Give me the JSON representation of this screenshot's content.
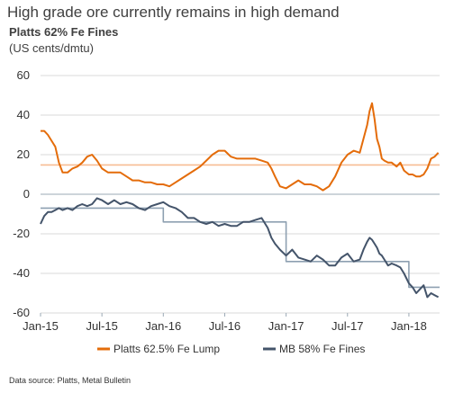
{
  "header": {
    "title": "High grade ore currently remains in high demand",
    "subtitle": "Platts 62% Fe Fines",
    "units": "(US cents/dmtu)"
  },
  "footer": {
    "source": "Data source: Platts, Metal Bulletin"
  },
  "colors": {
    "lump": "#E46C0A",
    "lump_avg": "#F7BC93",
    "fines": "#44546A",
    "fines_avg": "#8EA0B1",
    "zero_line": "#9BA9B5"
  },
  "chart_data": {
    "type": "line",
    "title": "Platts 62% Fe Fines",
    "ylabel": "(US cents/dmtu)",
    "xlabel": "",
    "ylim": [
      -60,
      60
    ],
    "yticks": [
      60,
      40,
      20,
      0,
      -20,
      -40,
      -60
    ],
    "xlim": [
      2015.0,
      2018.25
    ],
    "xticks": [
      {
        "label": "Jan-15",
        "x": 2015.0
      },
      {
        "label": "Jul-15",
        "x": 2015.5
      },
      {
        "label": "Jan-16",
        "x": 2016.0
      },
      {
        "label": "Jul-16",
        "x": 2016.5
      },
      {
        "label": "Jan-17",
        "x": 2017.0
      },
      {
        "label": "Jul-17",
        "x": 2017.5
      },
      {
        "label": "Jan-18",
        "x": 2018.0
      }
    ],
    "grid": "horizontal",
    "legend_position": "bottom",
    "series": [
      {
        "name": "Platts 62.5% Fe Lump",
        "color": "#E46C0A",
        "x": [
          2015.0,
          2015.03,
          2015.06,
          2015.09,
          2015.12,
          2015.15,
          2015.18,
          2015.22,
          2015.26,
          2015.3,
          2015.34,
          2015.38,
          2015.42,
          2015.46,
          2015.5,
          2015.55,
          2015.6,
          2015.65,
          2015.7,
          2015.75,
          2015.8,
          2015.85,
          2015.9,
          2015.95,
          2016.0,
          2016.05,
          2016.1,
          2016.15,
          2016.2,
          2016.25,
          2016.3,
          2016.35,
          2016.4,
          2016.45,
          2016.5,
          2016.55,
          2016.6,
          2016.65,
          2016.7,
          2016.75,
          2016.8,
          2016.85,
          2016.88,
          2016.91,
          2016.95,
          2017.0,
          2017.05,
          2017.1,
          2017.15,
          2017.2,
          2017.25,
          2017.3,
          2017.35,
          2017.4,
          2017.45,
          2017.5,
          2017.55,
          2017.6,
          2017.63,
          2017.66,
          2017.68,
          2017.7,
          2017.72,
          2017.74,
          2017.76,
          2017.78,
          2017.8,
          2017.83,
          2017.86,
          2017.9,
          2017.93,
          2017.96,
          2018.0,
          2018.03,
          2018.06,
          2018.09,
          2018.12,
          2018.15,
          2018.18,
          2018.21,
          2018.24
        ],
        "y": [
          32,
          32,
          30,
          27,
          24,
          16,
          11,
          11,
          13,
          14,
          16,
          19,
          20,
          17,
          13,
          11,
          11,
          11,
          9,
          7,
          7,
          6,
          6,
          5,
          5,
          4,
          6,
          8,
          10,
          12,
          14,
          17,
          20,
          22,
          22,
          19,
          18,
          18,
          18,
          18,
          17,
          16,
          13,
          9,
          4,
          3,
          5,
          7,
          5,
          5,
          4,
          2,
          4,
          9,
          16,
          20,
          22,
          21,
          28,
          35,
          42,
          46,
          38,
          28,
          24,
          18,
          17,
          16,
          16,
          14,
          16,
          12,
          10,
          10,
          9,
          9,
          10,
          13,
          18,
          19,
          21
        ],
        "style": "solid"
      },
      {
        "name": "Lump average",
        "color": "#F7BC93",
        "x": [
          2015.0,
          2018.25
        ],
        "y": [
          14.8,
          14.8
        ],
        "style": "flat"
      },
      {
        "name": "MB 58% Fe Fines",
        "color": "#44546A",
        "x": [
          2015.0,
          2015.03,
          2015.06,
          2015.09,
          2015.12,
          2015.15,
          2015.18,
          2015.22,
          2015.26,
          2015.3,
          2015.34,
          2015.38,
          2015.42,
          2015.46,
          2015.5,
          2015.55,
          2015.6,
          2015.65,
          2015.7,
          2015.75,
          2015.8,
          2015.85,
          2015.9,
          2015.95,
          2016.0,
          2016.05,
          2016.1,
          2016.15,
          2016.2,
          2016.25,
          2016.3,
          2016.35,
          2016.4,
          2016.45,
          2016.5,
          2016.55,
          2016.6,
          2016.65,
          2016.7,
          2016.75,
          2016.8,
          2016.85,
          2016.88,
          2016.91,
          2016.95,
          2017.0,
          2017.05,
          2017.1,
          2017.15,
          2017.2,
          2017.25,
          2017.3,
          2017.35,
          2017.4,
          2017.45,
          2017.5,
          2017.55,
          2017.6,
          2017.63,
          2017.66,
          2017.68,
          2017.7,
          2017.72,
          2017.74,
          2017.76,
          2017.78,
          2017.8,
          2017.83,
          2017.86,
          2017.9,
          2017.93,
          2017.96,
          2018.0,
          2018.03,
          2018.06,
          2018.09,
          2018.12,
          2018.15,
          2018.18,
          2018.21,
          2018.24
        ],
        "y": [
          -15,
          -11,
          -9,
          -9,
          -8,
          -7,
          -8,
          -7,
          -8,
          -6,
          -5,
          -6,
          -5,
          -2,
          -3,
          -5,
          -3,
          -5,
          -4,
          -5,
          -7,
          -8,
          -6,
          -5,
          -4,
          -6,
          -7,
          -9,
          -12,
          -12,
          -14,
          -15,
          -14,
          -16,
          -15,
          -16,
          -16,
          -14,
          -14,
          -13,
          -12,
          -17,
          -22,
          -25,
          -28,
          -31,
          -28,
          -32,
          -33,
          -34,
          -31,
          -33,
          -36,
          -36,
          -32,
          -30,
          -34,
          -33,
          -28,
          -24,
          -22,
          -23,
          -25,
          -27,
          -30,
          -31,
          -33,
          -36,
          -35,
          -36,
          -37,
          -40,
          -45,
          -47,
          -50,
          -48,
          -46,
          -52,
          -50,
          -51,
          -52
        ],
        "style": "solid"
      },
      {
        "name": "Fines average (stepped)",
        "color": "#8EA0B1",
        "x": [
          2015.0,
          2015.25,
          2015.25,
          2016.0,
          2016.0,
          2016.85,
          2016.85,
          2017.0,
          2017.0,
          2017.5,
          2017.5,
          2017.83,
          2017.83,
          2018.0,
          2018.0,
          2018.25
        ],
        "y": [
          -7,
          -7,
          -7,
          -7,
          -14,
          -14,
          -14,
          -14,
          -34,
          -34,
          -34,
          -34,
          -34,
          -34,
          -47,
          -47
        ],
        "style": "step"
      }
    ],
    "legend": [
      {
        "label": "Platts 62.5% Fe Lump",
        "color": "#E46C0A"
      },
      {
        "label": "MB 58% Fe Fines",
        "color": "#44546A"
      }
    ]
  }
}
